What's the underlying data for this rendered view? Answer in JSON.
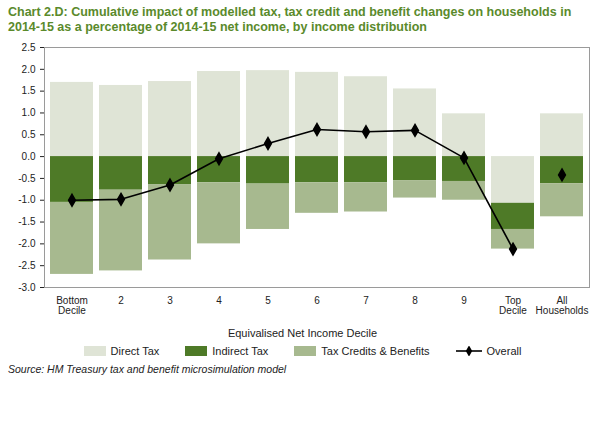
{
  "chart_data": {
    "type": "bar",
    "stacked": true,
    "title": "Chart 2.D: Cumulative impact of modelled tax, tax credit and benefit changes on households in 2014-15 as a percentage of 2014-15 net income, by income distribution",
    "x_label": "Equivalised Net Income Decile",
    "caption": "Source: HM Treasury tax and benefit microsimulation model",
    "categories": [
      "Bottom Decile",
      "2",
      "3",
      "4",
      "5",
      "6",
      "7",
      "8",
      "9",
      "Top Decile",
      "All Households"
    ],
    "series": [
      {
        "name": "Direct Tax",
        "color": "#dfe4d6",
        "values": [
          1.7,
          1.63,
          1.72,
          1.95,
          1.97,
          1.93,
          1.83,
          1.55,
          0.98,
          -1.07,
          0.98
        ]
      },
      {
        "name": "Indirect Tax",
        "color": "#4e7a27",
        "values": [
          -1.05,
          -0.77,
          -0.65,
          -0.6,
          -0.63,
          -0.6,
          -0.6,
          -0.55,
          -0.57,
          -0.6,
          -0.62
        ]
      },
      {
        "name": "Tax Credits & Benefits",
        "color": "#a7b98f",
        "values": [
          -1.65,
          -1.85,
          -1.72,
          -1.4,
          -1.04,
          -0.7,
          -0.67,
          -0.4,
          -0.43,
          -0.45,
          -0.76
        ]
      },
      {
        "name": "Overall",
        "type": "line",
        "color": "#000000",
        "marker": "diamond",
        "values": [
          -1.0,
          -0.98,
          -0.65,
          -0.05,
          0.3,
          0.62,
          0.57,
          0.6,
          -0.03,
          -2.12,
          -0.42
        ]
      }
    ],
    "ylim": [
      -3.0,
      2.5
    ],
    "yticks": [
      {
        "value": -3.0,
        "label": "-3.0"
      },
      -2.5,
      {
        "value": -2.0,
        "label": "-2.0"
      },
      -1.5,
      {
        "value": -1.0,
        "label": "-1.0"
      },
      -0.5,
      {
        "value": 0.0,
        "label": "0.0"
      },
      0.5,
      {
        "value": 1.0,
        "label": "1.0"
      },
      1.5,
      {
        "value": 2.0,
        "label": "2.0"
      },
      2.5
    ],
    "grid": false,
    "legend": "bottom"
  }
}
